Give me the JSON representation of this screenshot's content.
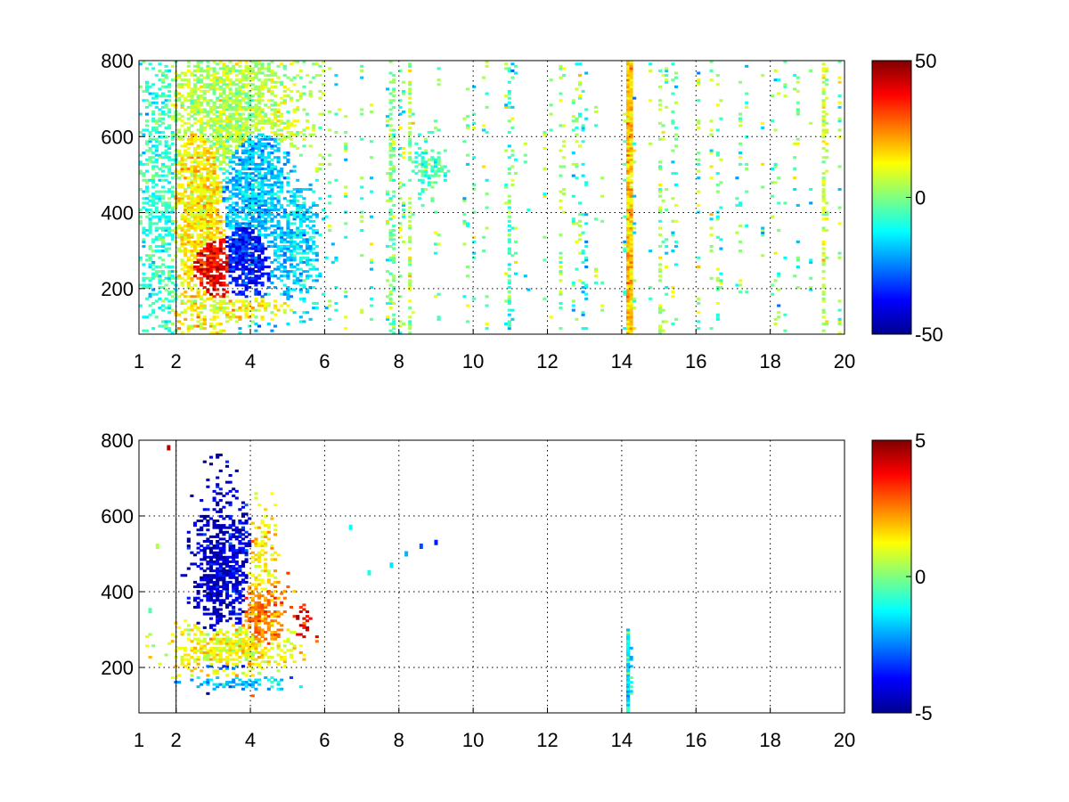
{
  "chart_data": [
    {
      "type": "heatmap",
      "x_ticks": [
        1,
        2,
        4,
        6,
        8,
        10,
        12,
        14,
        16,
        18,
        20
      ],
      "x_tick_labels": [
        "1",
        "2",
        "4",
        "6",
        "8",
        "10",
        "12",
        "14",
        "16",
        "18",
        "20"
      ],
      "xlim": [
        1,
        20
      ],
      "y_ticks": [
        200,
        400,
        600,
        800
      ],
      "y_tick_labels": [
        "200",
        "400",
        "600",
        "800"
      ],
      "ylim": [
        80,
        800
      ],
      "grid": true,
      "colormap": "jet",
      "colorbar": {
        "clim": [
          -50,
          50
        ],
        "tick_labels": [
          "50",
          "0",
          "-50"
        ],
        "ticks": [
          50,
          0,
          -50
        ]
      },
      "blobs": [
        {
          "x": 2.9,
          "y": 270,
          "sx": 0.45,
          "sy": 70,
          "value": 38,
          "density": 0.95
        },
        {
          "x": 2.7,
          "y": 420,
          "sx": 0.55,
          "sy": 220,
          "value": 14,
          "density": 0.85
        },
        {
          "x": 3.9,
          "y": 300,
          "sx": 0.45,
          "sy": 80,
          "value": -35,
          "density": 0.95
        },
        {
          "x": 4.0,
          "y": 470,
          "sx": 0.7,
          "sy": 170,
          "value": -18,
          "density": 0.85
        },
        {
          "x": 3.4,
          "y": 650,
          "sx": 1.2,
          "sy": 160,
          "value": 5,
          "density": 0.75
        },
        {
          "x": 1.6,
          "y": 450,
          "sx": 0.4,
          "sy": 300,
          "value": -8,
          "density": 0.55
        },
        {
          "x": 5.2,
          "y": 330,
          "sx": 0.45,
          "sy": 100,
          "value": -16,
          "density": 0.7
        },
        {
          "x": 3.3,
          "y": 150,
          "sx": 1.0,
          "sy": 20,
          "value": 12,
          "density": 0.75
        },
        {
          "x": 8.8,
          "y": 520,
          "sx": 0.25,
          "sy": 40,
          "value": -6,
          "density": 0.7
        }
      ],
      "columns": [
        {
          "x": 14.2,
          "value": 18,
          "density": 0.97
        },
        {
          "x": 13.0,
          "value": -14,
          "density": 0.55
        },
        {
          "x": 12.4,
          "value": 2,
          "density": 0.25
        },
        {
          "x": 15.1,
          "value": 4,
          "density": 0.3
        },
        {
          "x": 19.5,
          "value": 6,
          "density": 0.55
        },
        {
          "x": 7.8,
          "value": 0,
          "density": 0.45
        },
        {
          "x": 8.3,
          "value": 4,
          "density": 0.4
        },
        {
          "x": 10.9,
          "value": -6,
          "density": 0.3
        }
      ],
      "background": {
        "xmin": 6.0,
        "xmax": 20,
        "density": 0.09,
        "values": [
          -14,
          -8,
          -3,
          2,
          5,
          8
        ]
      }
    },
    {
      "type": "heatmap",
      "x_ticks": [
        1,
        2,
        4,
        6,
        8,
        10,
        12,
        14,
        16,
        18,
        20
      ],
      "x_tick_labels": [
        "1",
        "2",
        "4",
        "6",
        "8",
        "10",
        "12",
        "14",
        "16",
        "18",
        "20"
      ],
      "xlim": [
        1,
        20
      ],
      "y_ticks": [
        200,
        400,
        600,
        800
      ],
      "y_tick_labels": [
        "200",
        "400",
        "600",
        "800"
      ],
      "ylim": [
        80,
        800
      ],
      "grid": true,
      "colormap": "jet",
      "colorbar": {
        "clim": [
          -5,
          5
        ],
        "tick_labels": [
          "5",
          "0",
          "-5"
        ],
        "ticks": [
          5,
          0,
          -5
        ]
      },
      "blobs": [
        {
          "x": 3.1,
          "y": 460,
          "sx": 0.35,
          "sy": 130,
          "value": -4.3,
          "density": 0.8
        },
        {
          "x": 3.6,
          "y": 470,
          "sx": 0.25,
          "sy": 110,
          "value": -4.0,
          "density": 0.75
        },
        {
          "x": 3.5,
          "y": 250,
          "sx": 0.9,
          "sy": 40,
          "value": 1.2,
          "density": 0.85
        },
        {
          "x": 4.3,
          "y": 330,
          "sx": 0.35,
          "sy": 80,
          "value": 2.5,
          "density": 0.75
        },
        {
          "x": 4.3,
          "y": 450,
          "sx": 0.25,
          "sy": 100,
          "value": 1.5,
          "density": 0.55
        },
        {
          "x": 3.8,
          "y": 160,
          "sx": 0.8,
          "sy": 10,
          "value": -1.8,
          "density": 0.7
        },
        {
          "x": 3.4,
          "y": 205,
          "sx": 0.7,
          "sy": 10,
          "value": -3.0,
          "density": 0.5
        },
        {
          "x": 5.5,
          "y": 320,
          "sx": 0.2,
          "sy": 30,
          "value": 3.8,
          "density": 0.4
        }
      ],
      "columns": [
        {
          "x": 14.2,
          "value": -1.2,
          "density": 0.95,
          "ymax": 300
        }
      ],
      "scatter": [
        {
          "x": 7.8,
          "y": 470,
          "value": -1.5
        },
        {
          "x": 8.2,
          "y": 500,
          "value": -2.0
        },
        {
          "x": 8.6,
          "y": 520,
          "value": -3.0
        },
        {
          "x": 9.0,
          "y": 530,
          "value": -3.5
        },
        {
          "x": 7.2,
          "y": 450,
          "value": -1.0
        },
        {
          "x": 6.7,
          "y": 570,
          "value": -1.2
        },
        {
          "x": 1.8,
          "y": 780,
          "value": 4.5
        },
        {
          "x": 1.5,
          "y": 520,
          "value": 0.5
        },
        {
          "x": 1.3,
          "y": 350,
          "value": -0.5
        }
      ],
      "background": null
    }
  ]
}
